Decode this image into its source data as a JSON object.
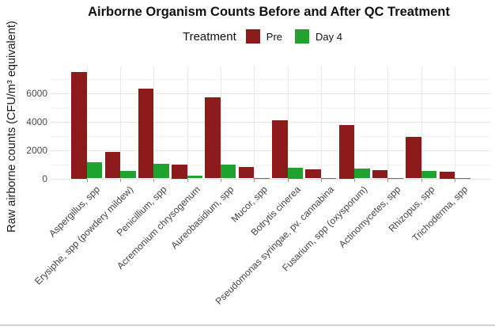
{
  "chart_data": {
    "type": "bar",
    "title": "Airborne Organism Counts Before and After QC Treatment",
    "legend_title": "Treatment",
    "xlabel": "",
    "ylabel": "Raw airborne counts (CFU/m³ equivalent)",
    "categories": [
      "Aspergillus, spp",
      "Erysiphe, spp (powdery mildew)",
      "Penicillium, spp",
      "Acremonium chrysogenum",
      "Aureobasidium, spp",
      "Mucor, spp",
      "Botrytis cinerea",
      "Pseudomonas syringae, pv. cannabina",
      "Fusarium, spp (oxysporum)",
      "Actinomycetes, spp",
      "Rhizopus, spp",
      "Trichoderma, spp"
    ],
    "series": [
      {
        "name": "Pre",
        "color": "#8e1b1b",
        "values": [
          7500,
          1850,
          6300,
          1000,
          5700,
          800,
          4100,
          650,
          3750,
          600,
          2900,
          500
        ]
      },
      {
        "name": "Day 4",
        "color": "#1fa32f",
        "values": [
          1150,
          550,
          1050,
          170,
          950,
          50,
          750,
          25,
          700,
          35,
          550,
          40
        ]
      }
    ],
    "ylim": [
      0,
      7850
    ],
    "yticks": [
      0,
      2000,
      4000,
      6000
    ],
    "minor_yticks": [
      1000,
      3000,
      5000,
      7000
    ],
    "grid": true,
    "legend_position": "top",
    "x_label_rotation": -45
  },
  "colors": {
    "grid_major": "#e4e4e4",
    "grid_minor": "#f2f2f2",
    "grid_vertical": "#e9e9e9",
    "axis_text": "#4a4a4a",
    "bottom_rule": "#d2d2d2"
  }
}
